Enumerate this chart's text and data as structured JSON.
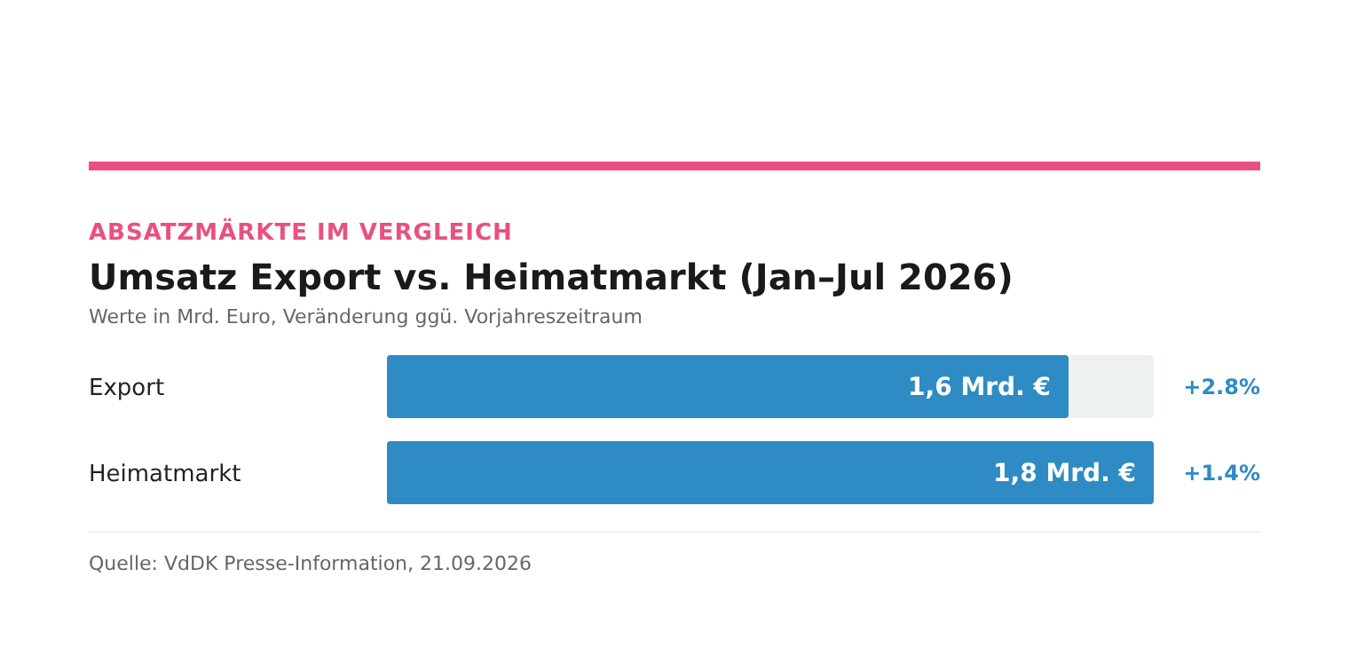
{
  "chart_data": {
    "type": "bar",
    "orientation": "horizontal",
    "title": "Umsatz Export vs. Heimatmarkt (Jan–Jul 2026)",
    "subtitle": "Werte in Mrd. Euro, Veränderung ggü. Vorjahreszeitraum",
    "categories": [
      "Export",
      "Heimatmarkt"
    ],
    "values": [
      1.6,
      1.8
    ],
    "value_labels": [
      "1,6 Mrd. €",
      "1,8 Mrd. €"
    ],
    "color": "#2e8bc4",
    "xlim": [
      0,
      1.8
    ],
    "tick_labels": "y",
    "annotations": [
      "ABSATZMÄRKTE IM VERGLEICH",
      "+2.8%",
      "+1.4%",
      "Quelle: VdDK Presse-Information, 21.09.2026"
    ]
  }
}
